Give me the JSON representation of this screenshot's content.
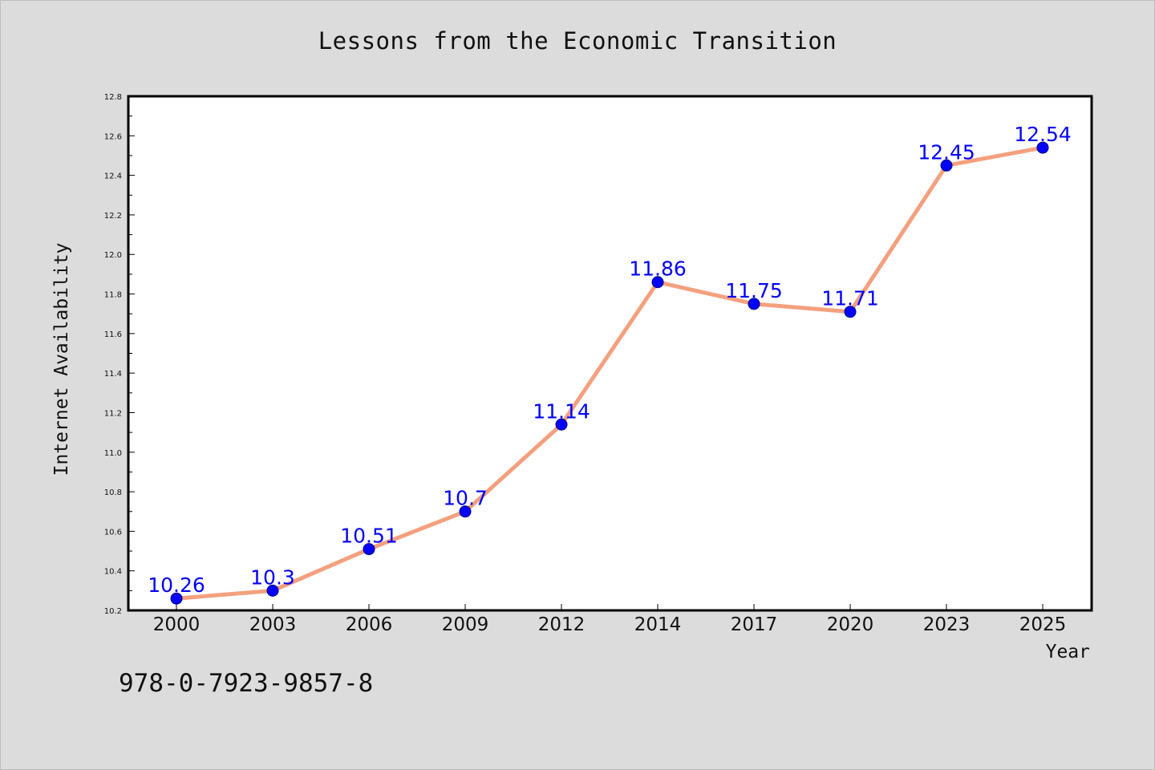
{
  "chart_data": {
    "type": "line",
    "title": "Lessons from the Economic Transition",
    "xlabel": "Year",
    "ylabel": "Internet Availability",
    "categories": [
      "2000",
      "2003",
      "2006",
      "2009",
      "2012",
      "2014",
      "2017",
      "2020",
      "2023",
      "2025"
    ],
    "series": [
      {
        "values": [
          10.26,
          10.3,
          10.51,
          10.7,
          11.14,
          11.86,
          11.75,
          11.71,
          12.45,
          12.54
        ],
        "labels": [
          "10.26",
          "10.3",
          "10.51",
          "10.7",
          "11.14",
          "11.86",
          "11.75",
          "11.71",
          "12.45",
          "12.54"
        ],
        "line_color": "#f4a07e",
        "marker_color": "#0000ff"
      }
    ],
    "ylim": [
      10.2,
      12.8
    ],
    "yticks": [
      "10.2",
      "10.4",
      "10.6",
      "10.8",
      "11.0",
      "11.2",
      "11.4",
      "11.6",
      "11.8",
      "12.0",
      "12.2",
      "12.4",
      "12.6",
      "12.8"
    ],
    "grid": false,
    "legend": "none"
  },
  "footer": {
    "isbn": "978-0-7923-9857-8"
  },
  "colors": {
    "background": "#dcdcdc",
    "plot_background": "#ffffff"
  }
}
